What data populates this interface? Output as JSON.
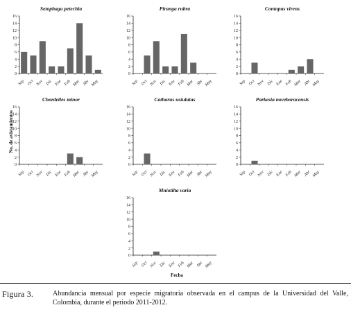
{
  "figure": {
    "ylabel": "No. de avistamientos",
    "xlabel": "Fecha"
  },
  "caption": {
    "label": "Figura 3.",
    "text": "Abundancia mensual por especie migratoria observada en el campus de la Universidad del Valle, Colombia, durante el periodo 2011-2012."
  },
  "colors": {
    "bar": "#666666",
    "axis": "#222222"
  },
  "chart_data": [
    {
      "type": "bar",
      "title": "Setophaga petechia",
      "categories": [
        "Sep",
        "Oct",
        "Nov",
        "Dic",
        "Ene",
        "Feb",
        "Mar",
        "Abr",
        "May"
      ],
      "values": [
        6,
        5,
        9,
        2,
        2,
        7,
        14,
        5,
        1
      ],
      "ylim": [
        0,
        16
      ],
      "yticks": [
        0,
        2,
        4,
        6,
        8,
        10,
        12,
        14,
        16
      ]
    },
    {
      "type": "bar",
      "title": "Piranga rubra",
      "categories": [
        "Sep",
        "Oct",
        "Nov",
        "Dic",
        "Ene",
        "Feb",
        "Mar",
        "Abr",
        "May"
      ],
      "values": [
        0,
        5,
        9,
        2,
        2,
        11,
        3,
        0,
        0
      ],
      "ylim": [
        0,
        16
      ],
      "yticks": [
        0,
        2,
        4,
        6,
        8,
        10,
        12,
        14,
        16
      ]
    },
    {
      "type": "bar",
      "title": "Contopus virens",
      "categories": [
        "Sep",
        "Oct",
        "Nov",
        "Dic",
        "Ene",
        "Feb",
        "Mar",
        "Abr",
        "May"
      ],
      "values": [
        0,
        3,
        0,
        0,
        0,
        1,
        2,
        4,
        0
      ],
      "ylim": [
        0,
        16
      ],
      "yticks": [
        0,
        2,
        4,
        6,
        8,
        10,
        12,
        14,
        16
      ]
    },
    {
      "type": "bar",
      "title": "Chordeiles minor",
      "categories": [
        "Sep",
        "Oct",
        "Nov",
        "Dic",
        "Ene",
        "Feb",
        "Mar",
        "Abr",
        "May"
      ],
      "values": [
        0,
        0,
        0,
        0,
        0,
        3,
        2,
        0,
        0
      ],
      "ylim": [
        0,
        16
      ],
      "yticks": [
        0,
        2,
        4,
        6,
        8,
        10,
        12,
        14,
        16
      ]
    },
    {
      "type": "bar",
      "title": "Catharus ustulatus",
      "categories": [
        "Sep",
        "Oct",
        "Nov",
        "Dic",
        "Ene",
        "Feb",
        "Mar",
        "Abr",
        "May"
      ],
      "values": [
        0,
        3,
        0,
        0,
        0,
        0,
        0,
        0,
        0
      ],
      "ylim": [
        0,
        16
      ],
      "yticks": [
        0,
        2,
        4,
        6,
        8,
        10,
        12,
        14,
        16
      ]
    },
    {
      "type": "bar",
      "title": "Parkesia noveboracensis",
      "categories": [
        "Sep",
        "Oct",
        "Nov",
        "Dic",
        "Ene",
        "Feb",
        "Mar",
        "Abr",
        "May"
      ],
      "values": [
        0,
        1,
        0,
        0,
        0,
        0,
        0,
        0,
        0
      ],
      "ylim": [
        0,
        16
      ],
      "yticks": [
        0,
        2,
        4,
        6,
        8,
        10,
        12,
        14,
        16
      ]
    },
    {
      "type": "bar",
      "title": "Mniotilta varia",
      "categories": [
        "Sep",
        "Oct",
        "Nov",
        "Dic",
        "Ene",
        "Feb",
        "Mar",
        "Abr",
        "May"
      ],
      "values": [
        0,
        0,
        1,
        0,
        0,
        0,
        0,
        0,
        0
      ],
      "ylim": [
        0,
        16
      ],
      "yticks": [
        0,
        2,
        4,
        6,
        8,
        10,
        12,
        14,
        16
      ]
    }
  ]
}
